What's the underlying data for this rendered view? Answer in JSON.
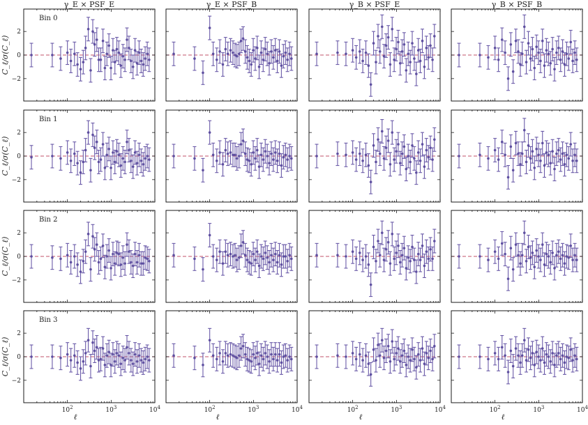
{
  "figure": {
    "columns": [
      "γ_E × PSF_E",
      "γ_E × PSF_B",
      "γ_B × PSF_E",
      "γ_B × PSF_B"
    ],
    "rows": [
      "Bin 0",
      "Bin 1",
      "Bin 2",
      "Bin 3"
    ],
    "ylabel": "C_ℓ/σ(C_ℓ)",
    "xlabel": "ℓ"
  },
  "chart_data": {
    "type": "scatter",
    "xscale": "log",
    "xlim": [
      10,
      10000
    ],
    "ylim": [
      -3.9,
      3.9
    ],
    "xticks": [
      "10^2",
      "10^3",
      "10^4"
    ],
    "yticks": [
      "-2",
      "0",
      "2"
    ],
    "reference_line": {
      "y": 0,
      "style": "dashed"
    },
    "error_bar": 1.0,
    "ell": [
      15,
      45,
      70,
      100,
      120,
      145,
      170,
      200,
      230,
      260,
      300,
      340,
      380,
      420,
      470,
      520,
      580,
      650,
      720,
      800,
      890,
      990,
      1100,
      1220,
      1350,
      1500,
      1670,
      1860,
      2070,
      2300,
      2560,
      2850,
      3170,
      3520,
      3920,
      4360,
      4850,
      5400,
      6000,
      6700,
      7400
    ],
    "panels": [
      {
        "row": "Bin 0",
        "column": "γ_E × PSF_E",
        "values": [
          0,
          0,
          -0.3,
          0.2,
          -0.5,
          0.1,
          -0.8,
          -1.2,
          -0.6,
          0.6,
          2.2,
          -1.3,
          2.0,
          0.9,
          1.3,
          -0.4,
          -0.4,
          1.2,
          -1.1,
          0.1,
          0.8,
          -1.1,
          0.4,
          -0.6,
          0.5,
          0.2,
          -0.9,
          -0.1,
          -0.4,
          1.3,
          0.6,
          -0.5,
          -1.0,
          0.4,
          -0.7,
          0.2,
          -0.5,
          -0.8,
          -0.3,
          0.1,
          -0.4
        ]
      },
      {
        "row": "Bin 0",
        "column": "γ_E × PSF_B",
        "values": [
          0.1,
          -0.3,
          -1.5,
          2.3,
          0.1,
          -0.4,
          0.3,
          -0.8,
          0.5,
          0.1,
          0.4,
          0.2,
          0.0,
          -0.1,
          0.1,
          1.2,
          1.4,
          0.3,
          -0.2,
          -0.5,
          -0.8,
          0.4,
          -0.3,
          0.6,
          -1.0,
          0.2,
          -0.4,
          0.5,
          0.1,
          -0.7,
          0.3,
          -0.2,
          0.4,
          -0.5,
          0.3,
          -0.9,
          -0.1,
          0.2,
          -0.4,
          0.1,
          -0.3
        ]
      },
      {
        "row": "Bin 0",
        "column": "γ_B × PSF_E",
        "values": [
          0.1,
          0.2,
          0.1,
          0.4,
          -0.2,
          0.3,
          -0.5,
          0.2,
          -0.9,
          -2.5,
          1.0,
          -0.6,
          1.6,
          0.3,
          2.4,
          -0.1,
          0.8,
          1.5,
          -0.8,
          2.2,
          -0.4,
          0.5,
          1.1,
          -0.7,
          0.3,
          0.9,
          -1.3,
          0.1,
          -0.6,
          1.0,
          -0.3,
          -1.6,
          0.4,
          -0.5,
          1.2,
          -1.0,
          0.6,
          -0.2,
          0.8,
          -0.4,
          1.6
        ]
      },
      {
        "row": "Bin 0",
        "column": "γ_B × PSF_B",
        "values": [
          0.0,
          0.0,
          -0.2,
          0.6,
          -0.4,
          1.3,
          0.2,
          -2.0,
          0.9,
          -1.4,
          1.2,
          0.3,
          -0.8,
          0.1,
          2.4,
          -0.6,
          1.0,
          -0.3,
          0.5,
          -1.1,
          0.7,
          0.2,
          -0.5,
          1.2,
          -0.9,
          0.4,
          0.1,
          -0.7,
          0.5,
          -1.2,
          0.2,
          0.6,
          -0.4,
          0.3,
          -0.8,
          0.1,
          -0.3,
          1.1,
          -0.5,
          0.2,
          -0.4
        ]
      },
      {
        "row": "Bin 1",
        "column": "γ_E × PSF_E",
        "values": [
          -0.1,
          0.0,
          -0.2,
          0.3,
          -0.4,
          0.2,
          -0.6,
          -1.4,
          -0.5,
          0.5,
          2.0,
          -1.2,
          1.8,
          0.7,
          1.2,
          -0.5,
          -0.3,
          1.0,
          -1.0,
          0.1,
          0.6,
          -1.0,
          0.3,
          -0.5,
          0.4,
          0.1,
          -0.8,
          -0.2,
          -0.5,
          1.2,
          0.5,
          -0.4,
          -0.9,
          0.3,
          -0.6,
          0.1,
          -0.4,
          -0.7,
          -0.2,
          0.0,
          -0.3
        ]
      },
      {
        "row": "Bin 1",
        "column": "γ_E × PSF_B",
        "values": [
          0.0,
          -0.2,
          -1.2,
          2.0,
          0.1,
          -0.4,
          0.3,
          -0.7,
          0.5,
          0.2,
          0.3,
          0.1,
          0.1,
          -0.2,
          0.0,
          1.0,
          1.3,
          0.2,
          -0.3,
          -0.4,
          -0.7,
          0.3,
          -0.2,
          0.5,
          -0.9,
          0.1,
          -0.3,
          0.4,
          0.0,
          -0.6,
          0.2,
          -0.3,
          0.3,
          -0.4,
          0.2,
          -0.8,
          -0.1,
          0.1,
          -0.3,
          0.0,
          -0.2
        ]
      },
      {
        "row": "Bin 1",
        "column": "γ_B × PSF_E",
        "values": [
          0.0,
          0.2,
          0.1,
          0.3,
          -0.3,
          0.2,
          -0.4,
          0.1,
          -0.8,
          -2.2,
          0.9,
          -0.5,
          1.4,
          0.2,
          2.1,
          -0.2,
          0.7,
          1.3,
          -0.7,
          2.0,
          -0.3,
          0.4,
          1.0,
          -0.6,
          0.2,
          0.8,
          -1.1,
          0.0,
          -0.5,
          0.9,
          -0.2,
          -1.4,
          0.3,
          -0.4,
          1.0,
          -0.9,
          0.5,
          -0.1,
          0.7,
          -0.3,
          1.4
        ]
      },
      {
        "row": "Bin 1",
        "column": "γ_B × PSF_B",
        "values": [
          0.0,
          0.1,
          -0.2,
          0.5,
          -0.3,
          1.2,
          0.1,
          -1.8,
          0.8,
          -1.2,
          1.1,
          0.2,
          -0.7,
          0.2,
          2.2,
          -0.5,
          0.9,
          -0.2,
          0.4,
          -1.0,
          0.6,
          0.1,
          -0.4,
          1.1,
          -0.8,
          0.3,
          0.1,
          -0.6,
          0.4,
          -1.1,
          0.2,
          0.5,
          -0.3,
          0.2,
          -0.7,
          0.1,
          -0.2,
          1.0,
          -0.4,
          0.1,
          -0.4
        ]
      },
      {
        "row": "Bin 2",
        "column": "γ_E × PSF_E",
        "values": [
          0.0,
          -0.1,
          -0.2,
          0.1,
          -0.5,
          0.0,
          -0.7,
          -1.3,
          -0.4,
          0.4,
          1.9,
          -1.1,
          1.7,
          0.6,
          1.0,
          -0.5,
          -0.2,
          0.9,
          -0.9,
          0.0,
          0.5,
          -1.0,
          0.2,
          -0.6,
          0.3,
          0.2,
          -0.7,
          -0.1,
          -0.6,
          1.0,
          0.4,
          -0.5,
          -0.8,
          0.2,
          -0.5,
          0.1,
          -0.6,
          -0.6,
          -0.1,
          -0.2,
          -0.4
        ]
      },
      {
        "row": "Bin 2",
        "column": "γ_E × PSF_B",
        "values": [
          0.1,
          -0.2,
          -1.1,
          1.8,
          0.0,
          -0.3,
          0.4,
          -0.6,
          0.4,
          0.1,
          0.2,
          0.0,
          0.1,
          -0.3,
          -0.1,
          0.9,
          1.2,
          0.1,
          -0.3,
          -0.5,
          -0.6,
          0.2,
          -0.3,
          0.4,
          -0.8,
          0.0,
          -0.2,
          0.3,
          -0.1,
          -0.5,
          0.1,
          -0.3,
          0.2,
          -0.5,
          0.1,
          -0.7,
          0.0,
          0.0,
          -0.4,
          0.1,
          -0.2
        ]
      },
      {
        "row": "Bin 2",
        "column": "γ_B × PSF_E",
        "values": [
          0.1,
          0.1,
          0.0,
          0.4,
          -0.2,
          0.3,
          -0.3,
          0.0,
          -0.7,
          -2.4,
          0.8,
          -0.4,
          1.3,
          0.1,
          2.0,
          -0.3,
          0.6,
          1.2,
          -0.6,
          1.9,
          -0.2,
          0.3,
          0.9,
          -0.5,
          0.1,
          0.7,
          -1.0,
          -0.1,
          -0.4,
          0.8,
          -0.3,
          -1.3,
          0.2,
          -0.3,
          0.9,
          -0.8,
          0.4,
          -0.2,
          0.6,
          -0.2,
          1.3
        ]
      },
      {
        "row": "Bin 2",
        "column": "γ_B × PSF_B",
        "values": [
          0.0,
          0.0,
          -0.3,
          0.4,
          -0.2,
          1.1,
          0.2,
          -1.9,
          0.7,
          -1.1,
          1.0,
          0.1,
          -0.6,
          0.1,
          2.0,
          -0.4,
          0.8,
          -0.1,
          0.3,
          -0.9,
          0.5,
          0.0,
          -0.3,
          1.0,
          -0.7,
          0.2,
          0.0,
          -0.5,
          0.3,
          -1.0,
          0.1,
          0.4,
          -0.2,
          0.1,
          -0.6,
          0.0,
          -0.1,
          0.9,
          -0.3,
          0.1,
          -0.3
        ]
      },
      {
        "row": "Bin 3",
        "column": "γ_E × PSF_E",
        "values": [
          0.0,
          0.0,
          -0.1,
          0.2,
          -0.3,
          0.1,
          -0.5,
          -1.0,
          -0.4,
          0.3,
          1.4,
          -0.8,
          1.2,
          0.5,
          0.8,
          -0.3,
          -0.2,
          0.7,
          -0.7,
          0.1,
          0.4,
          -0.7,
          0.2,
          -0.4,
          0.3,
          0.1,
          -0.6,
          -0.1,
          -0.3,
          0.8,
          0.3,
          -0.3,
          -0.6,
          0.2,
          -0.4,
          0.1,
          -0.3,
          -0.5,
          -0.2,
          0.0,
          -0.3
        ]
      },
      {
        "row": "Bin 3",
        "column": "γ_E × PSF_B",
        "values": [
          0.1,
          -0.1,
          -0.7,
          1.4,
          0.1,
          -0.2,
          0.3,
          -0.4,
          0.3,
          0.1,
          0.2,
          0.1,
          0.0,
          -0.1,
          0.1,
          0.7,
          0.9,
          0.2,
          -0.2,
          -0.3,
          -0.4,
          0.2,
          -0.1,
          0.3,
          -0.6,
          0.1,
          -0.2,
          0.3,
          0.0,
          -0.4,
          0.2,
          -0.2,
          0.2,
          -0.3,
          0.2,
          -0.5,
          0.0,
          0.1,
          -0.3,
          0.0,
          -0.2
        ]
      },
      {
        "row": "Bin 3",
        "column": "γ_B × PSF_E",
        "values": [
          0.0,
          0.1,
          0.0,
          0.3,
          -0.2,
          0.2,
          -0.3,
          0.1,
          -0.6,
          -1.5,
          0.6,
          -0.3,
          1.0,
          0.1,
          1.4,
          -0.1,
          0.5,
          0.9,
          -0.4,
          1.3,
          -0.2,
          0.3,
          0.7,
          -0.4,
          0.1,
          0.5,
          -0.7,
          0.0,
          -0.3,
          0.6,
          -0.2,
          -0.9,
          0.2,
          -0.3,
          0.7,
          -0.6,
          0.3,
          -0.1,
          0.5,
          -0.2,
          0.9
        ]
      },
      {
        "row": "Bin 3",
        "column": "γ_B × PSF_B",
        "values": [
          0.0,
          0.0,
          -0.2,
          0.3,
          -0.2,
          0.8,
          0.1,
          -1.3,
          0.5,
          -0.8,
          0.7,
          0.1,
          -0.5,
          0.1,
          1.4,
          -0.3,
          0.6,
          -0.1,
          0.3,
          -0.7,
          0.4,
          0.0,
          -0.3,
          0.7,
          -0.5,
          0.2,
          0.0,
          -0.4,
          0.3,
          -0.7,
          0.1,
          0.3,
          -0.2,
          0.1,
          -0.5,
          0.0,
          -0.1,
          0.6,
          -0.3,
          0.1,
          -0.2
        ]
      }
    ]
  }
}
